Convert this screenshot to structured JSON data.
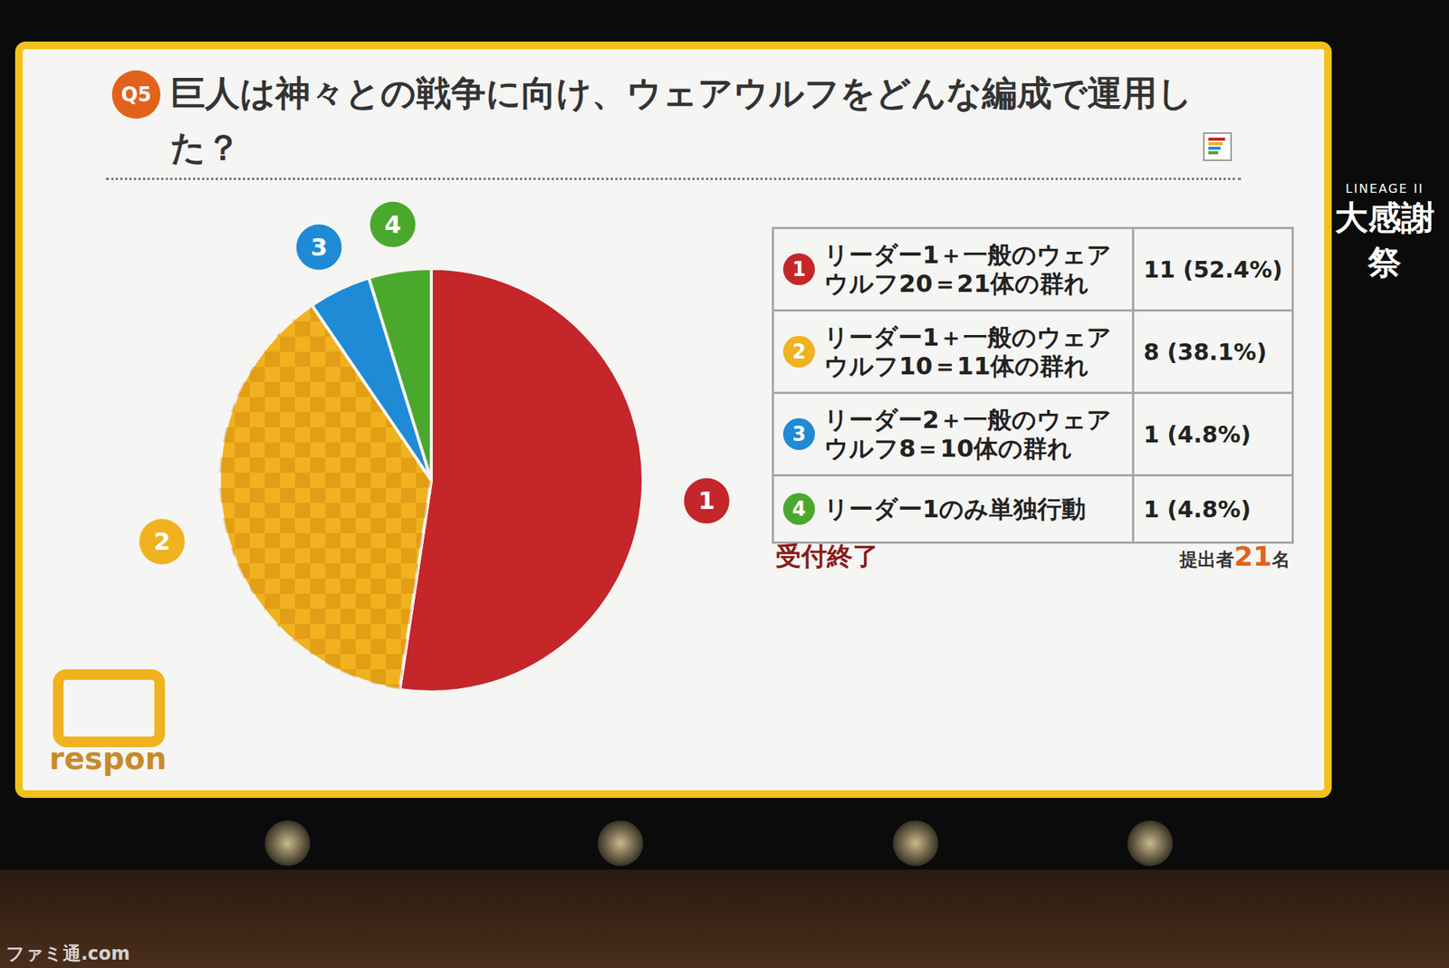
{
  "chart_data": {
    "type": "pie",
    "question_number": "Q5",
    "title": "巨人は神々との戦争に向け、ウェアウルフをどんな編成で運用した？",
    "categories": [
      "リーダー1＋一般のウェアウルフ20＝21体の群れ",
      "リーダー1＋一般のウェアウルフ10＝11体の群れ",
      "リーダー2＋一般のウェアウルフ8＝10体の群れ",
      "リーダー1のみ単独行動"
    ],
    "item_numbers": [
      "1",
      "2",
      "3",
      "4"
    ],
    "values": [
      11,
      8,
      1,
      1
    ],
    "value_labels": [
      "11 (52.4%)",
      "8 (38.1%)",
      "1 (4.8%)",
      "1 (4.8%)"
    ],
    "colors": [
      "#c4262a",
      "#f0b21e",
      "#1f8ad6",
      "#4aa82c"
    ],
    "data_labels": true,
    "status": "受付終了",
    "respondents": [
      "提出者",
      "21",
      "名"
    ],
    "app_logo": "respon",
    "event_logo": [
      "LINEAGE II",
      "大感謝祭"
    ],
    "watermark": "ファミ通.com"
  }
}
